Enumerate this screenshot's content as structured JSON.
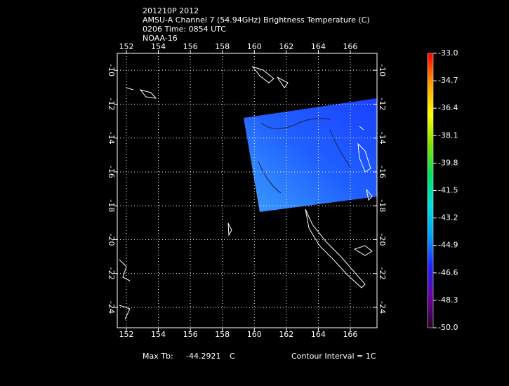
{
  "header": {
    "lines": [
      "201210P 2012",
      "AMSU-A Channel 7 (54.94GHz) Brightness Temperature (C)",
      "0206 Time: 0854 UTC",
      "NOAA-16"
    ]
  },
  "map": {
    "lon_range": [
      151.43,
      167.67
    ],
    "lat_range": [
      -9.0,
      -25.2
    ],
    "lon_ticks": [
      152,
      154,
      156,
      158,
      160,
      162,
      164,
      166
    ],
    "lat_ticks": [
      -10,
      -12,
      -14,
      -16,
      -18,
      -20,
      -22,
      -24
    ],
    "grid": true
  },
  "colorbar": {
    "range": [
      -50,
      -33
    ],
    "colors": [
      "#2a0020",
      "#6a00a0",
      "#2020ff",
      "#00a0ff",
      "#00e0e0",
      "#00e060",
      "#80e000",
      "#ffff00",
      "#ffa000",
      "#ff0000"
    ],
    "ticks": [
      {
        "value": -33,
        "label": "-33.0"
      },
      {
        "value": -34.7,
        "label": "-34.7"
      },
      {
        "value": -36.4,
        "label": "-36.4"
      },
      {
        "value": -38.1,
        "label": "-38.1"
      },
      {
        "value": -39.8,
        "label": "-39.8"
      },
      {
        "value": -41.5,
        "label": "-41.5"
      },
      {
        "value": -43.2,
        "label": "-43.2"
      },
      {
        "value": -44.9,
        "label": "-44.9"
      },
      {
        "value": -46.6,
        "label": "-46.6"
      },
      {
        "value": -48.3,
        "label": "-48.3"
      },
      {
        "value": -50,
        "label": "-50.0"
      }
    ]
  },
  "footer": {
    "max_label": "Max Tb:",
    "max_value": "-44.2921",
    "max_unit": "C",
    "contour": "Contour Interval = 1C"
  }
}
